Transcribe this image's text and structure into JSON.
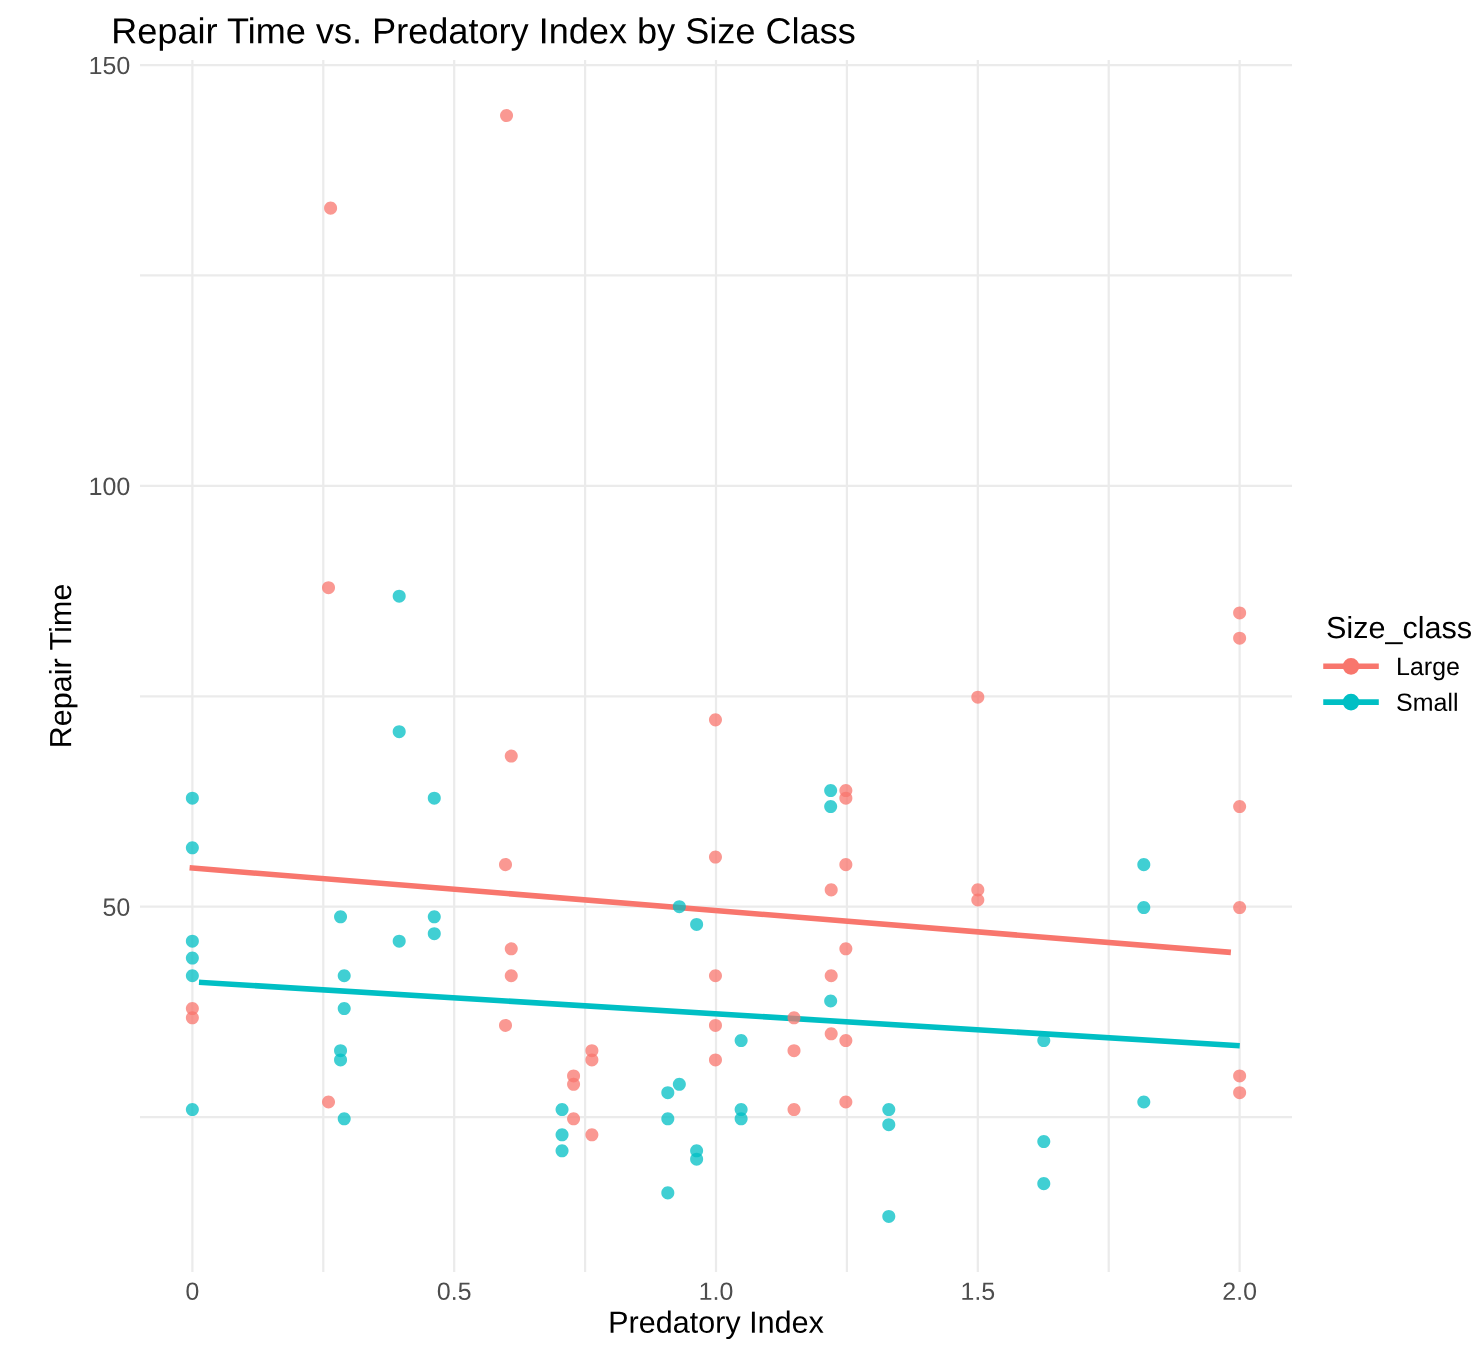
{
  "chart_data": {
    "type": "scatter",
    "title": "Repair Time vs. Predatory Index by Size Class",
    "xlabel": "Predatory Index",
    "ylabel": "Repair Time",
    "legend_title": "Size_class",
    "legend": "right",
    "grid": true,
    "marker": "circle",
    "xlim": [
      -0.1,
      2.1
    ],
    "xticks": [
      0,
      {
        "value": 0.25,
        "label": null
      },
      {
        "value": 0.5,
        "label": "0.5"
      },
      {
        "value": 0.75,
        "label": null
      },
      {
        "value": 1,
        "label": "1.0"
      },
      {
        "value": 1.25,
        "label": null
      },
      {
        "value": 1.5,
        "label": "1.5"
      },
      {
        "value": 1.75,
        "label": null
      },
      {
        "value": 2,
        "label": "2.0"
      }
    ],
    "ylim": [
      6.6,
      150.6
    ],
    "yticks": [
      {
        "value": 25,
        "label": null
      },
      50,
      {
        "value": 75,
        "label": null
      },
      100,
      {
        "value": 125,
        "label": null
      },
      150
    ],
    "series": [
      {
        "name": "Large",
        "color": "#f8766d",
        "x": [
          0,
          0,
          0.26,
          0.26,
          0.264,
          0.6,
          0.609,
          0.598,
          0.609,
          0.609,
          0.598,
          0.763,
          0.763,
          0.728,
          0.728,
          0.728,
          0.763,
          0.999,
          0.999,
          0.999,
          0.999,
          0.999,
          1.149,
          1.149,
          1.149,
          1.248,
          1.248,
          1.248,
          1.22,
          1.248,
          1.22,
          1.22,
          1.248,
          1.248,
          1.5,
          1.5,
          1.5,
          2,
          2,
          2,
          2,
          2,
          2
        ],
        "values": [
          37.9,
          36.8,
          87.9,
          26.8,
          133,
          144,
          67.9,
          55,
          45,
          41.8,
          35.9,
          32.9,
          31.8,
          29.9,
          28.9,
          24.8,
          22.9,
          72.2,
          55.9,
          41.8,
          35.9,
          31.8,
          36.8,
          32.9,
          25.9,
          63.8,
          62.9,
          55,
          52,
          45,
          41.8,
          34.9,
          34.1,
          26.8,
          74.9,
          52,
          50.8,
          84.9,
          81.9,
          61.9,
          49.9,
          29.9,
          27.9
        ]
      },
      {
        "name": "Small",
        "color": "#00bfc4",
        "x": [
          0,
          0,
          0,
          0,
          0,
          0,
          0.283,
          0.29,
          0.29,
          0.283,
          0.283,
          0.29,
          0.395,
          0.395,
          0.395,
          0.462,
          0.462,
          0.462,
          0.706,
          0.706,
          0.706,
          0.908,
          0.93,
          0.908,
          0.908,
          0.93,
          0.963,
          0.963,
          0.963,
          1.048,
          1.048,
          1.048,
          1.219,
          1.219,
          1.219,
          1.33,
          1.33,
          1.33,
          1.626,
          1.626,
          1.626,
          1.817,
          1.817,
          1.817
        ],
        "values": [
          62.9,
          57,
          45.9,
          43.9,
          41.8,
          25.9,
          48.8,
          41.8,
          37.9,
          32.9,
          31.8,
          24.8,
          86.9,
          70.8,
          45.9,
          62.9,
          48.8,
          46.8,
          25.9,
          22.9,
          21,
          27.9,
          28.9,
          24.8,
          16,
          50,
          47.9,
          21,
          20,
          34.1,
          25.9,
          24.8,
          63.8,
          61.9,
          38.8,
          25.9,
          24.1,
          13.2,
          34.1,
          22.1,
          17.1,
          55,
          49.9,
          26.8
        ]
      },
      {
        "type": "line",
        "marker": "none",
        "color": "#f8766d",
        "x": [
          0,
          1.978
        ],
        "values": [
          54.6,
          44.6
        ]
      },
      {
        "type": "line",
        "marker": "none",
        "color": "#00bfc4",
        "x": [
          0.018,
          1.995
        ],
        "values": [
          41,
          33.5
        ]
      }
    ]
  }
}
